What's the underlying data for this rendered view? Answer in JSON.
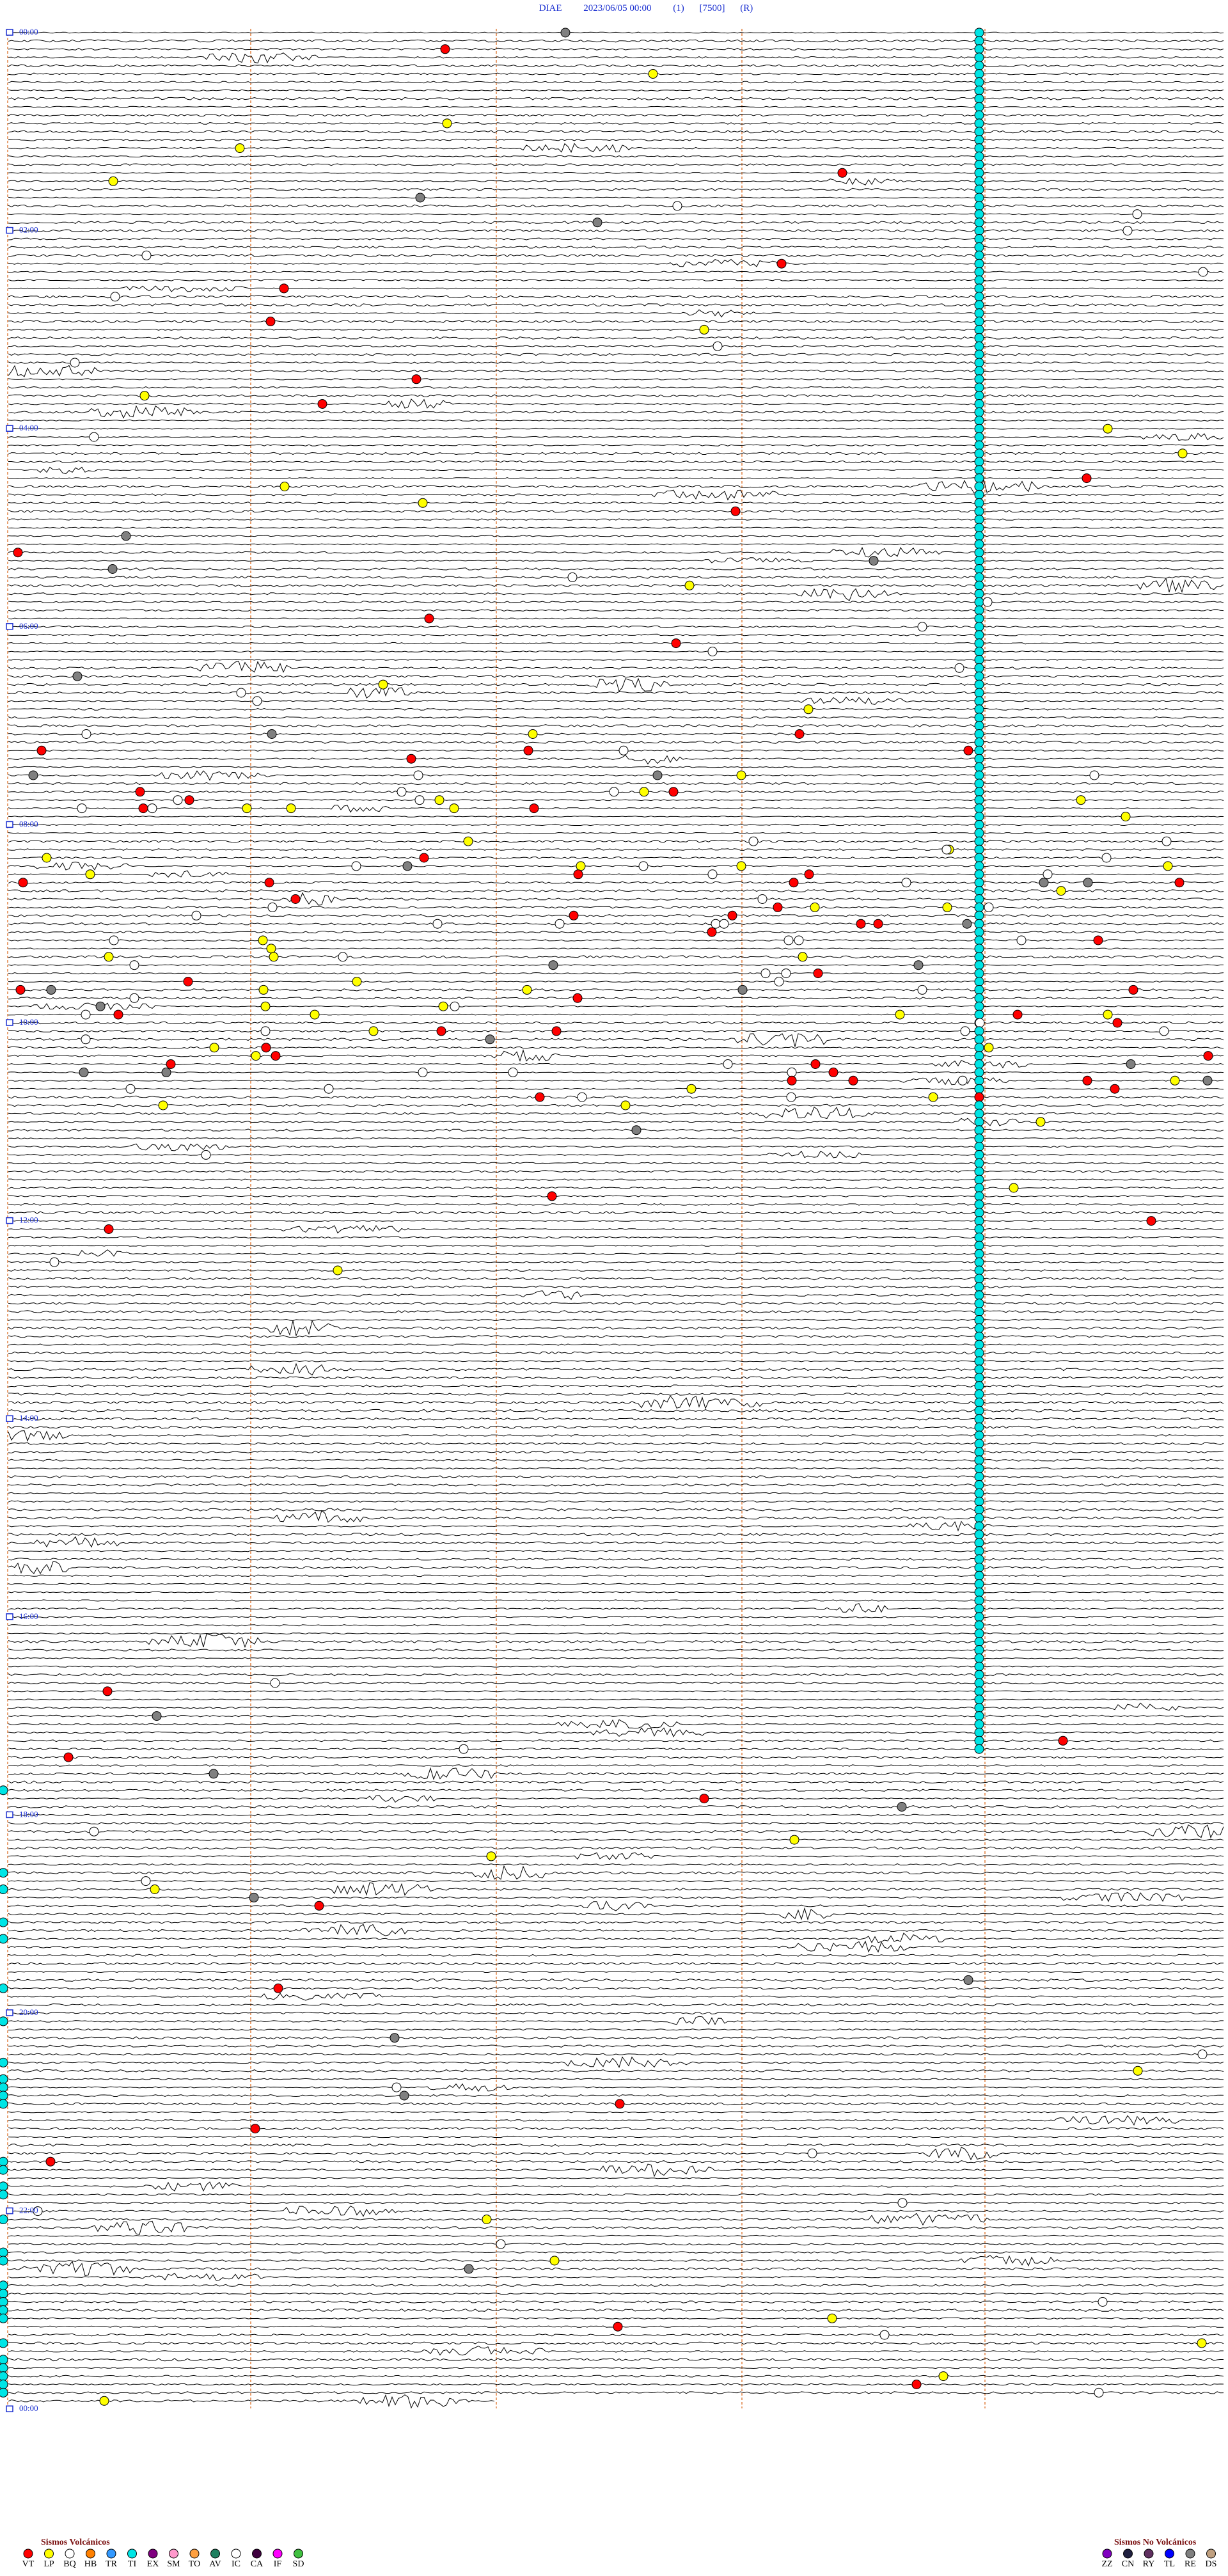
{
  "header": {
    "station": "DIAE",
    "datetime": "2023/06/05 00:00",
    "channel": "(1)",
    "gain": "[7500]",
    "mode": "(R)"
  },
  "time_labels": [
    "00:00",
    "02:00",
    "04:00",
    "06:00",
    "08:00",
    "10:00",
    "12:00",
    "14:00",
    "16:00",
    "18:00",
    "20:00",
    "22:00",
    "00:00"
  ],
  "legend": {
    "volcanic": {
      "title": "Sismos Volcánicos",
      "items": [
        {
          "label": "VT",
          "color": "#ff0000"
        },
        {
          "label": "LP",
          "color": "#ffff00"
        },
        {
          "label": "BQ",
          "color": "#ffffff"
        },
        {
          "label": "HB",
          "color": "#ff8000"
        },
        {
          "label": "TR",
          "color": "#3399ff"
        },
        {
          "label": "TI",
          "color": "#00e5e5"
        },
        {
          "label": "EX",
          "color": "#800080"
        },
        {
          "label": "SM",
          "color": "#ff99cc"
        },
        {
          "label": "TO",
          "color": "#ffa040"
        },
        {
          "label": "AV",
          "color": "#208060"
        },
        {
          "label": "IC",
          "color": "#ffffff"
        },
        {
          "label": "CA",
          "color": "#400040"
        },
        {
          "label": "IF",
          "color": "#ff00ff"
        },
        {
          "label": "SD",
          "color": "#40c040"
        }
      ]
    },
    "non_volcanic": {
      "title": "Sismos No Volcánicos",
      "items": [
        {
          "label": "ZZ",
          "color": "#8000c0"
        },
        {
          "label": "CN",
          "color": "#202040"
        },
        {
          "label": "RY",
          "color": "#603060"
        },
        {
          "label": "TL",
          "color": "#0000ff"
        },
        {
          "label": "RE",
          "color": "#808080"
        },
        {
          "label": "DS",
          "color": "#c0a080"
        }
      ]
    }
  }
}
